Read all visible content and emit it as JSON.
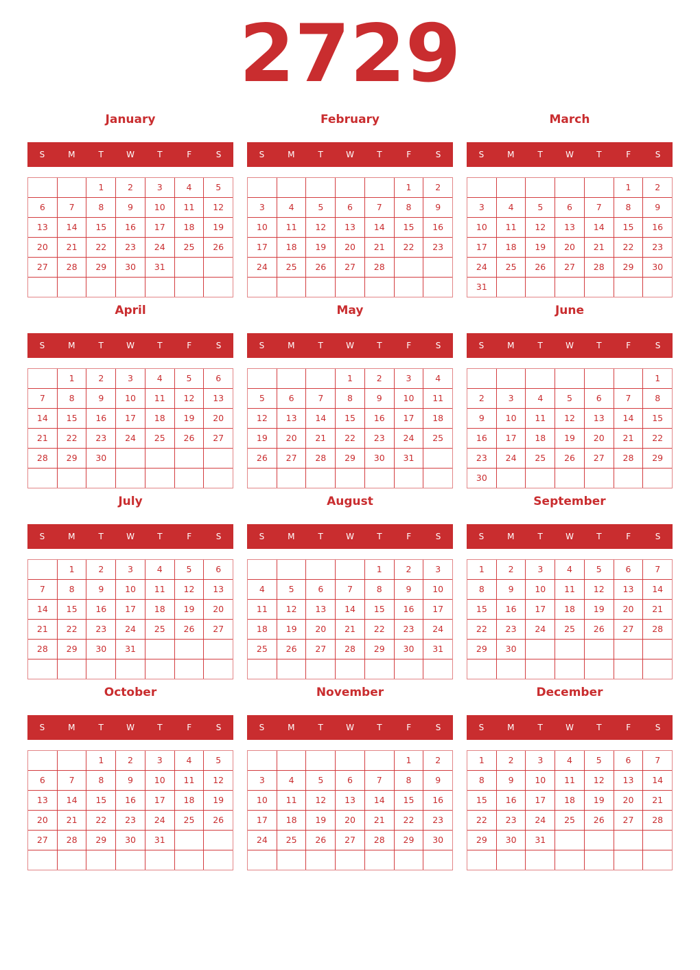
{
  "year": "2729",
  "weekdays": [
    "S",
    "M",
    "T",
    "W",
    "T",
    "F",
    "S"
  ],
  "accent_color": "#c92d2f",
  "months": [
    {
      "name": "January",
      "start_weekday": 2,
      "days": 31
    },
    {
      "name": "February",
      "start_weekday": 5,
      "days": 28
    },
    {
      "name": "March",
      "start_weekday": 5,
      "days": 31
    },
    {
      "name": "April",
      "start_weekday": 1,
      "days": 30
    },
    {
      "name": "May",
      "start_weekday": 3,
      "days": 31
    },
    {
      "name": "June",
      "start_weekday": 6,
      "days": 30
    },
    {
      "name": "July",
      "start_weekday": 1,
      "days": 31
    },
    {
      "name": "August",
      "start_weekday": 4,
      "days": 31
    },
    {
      "name": "September",
      "start_weekday": 0,
      "days": 30
    },
    {
      "name": "October",
      "start_weekday": 2,
      "days": 31
    },
    {
      "name": "November",
      "start_weekday": 5,
      "days": 30
    },
    {
      "name": "December",
      "start_weekday": 0,
      "days": 31
    }
  ]
}
